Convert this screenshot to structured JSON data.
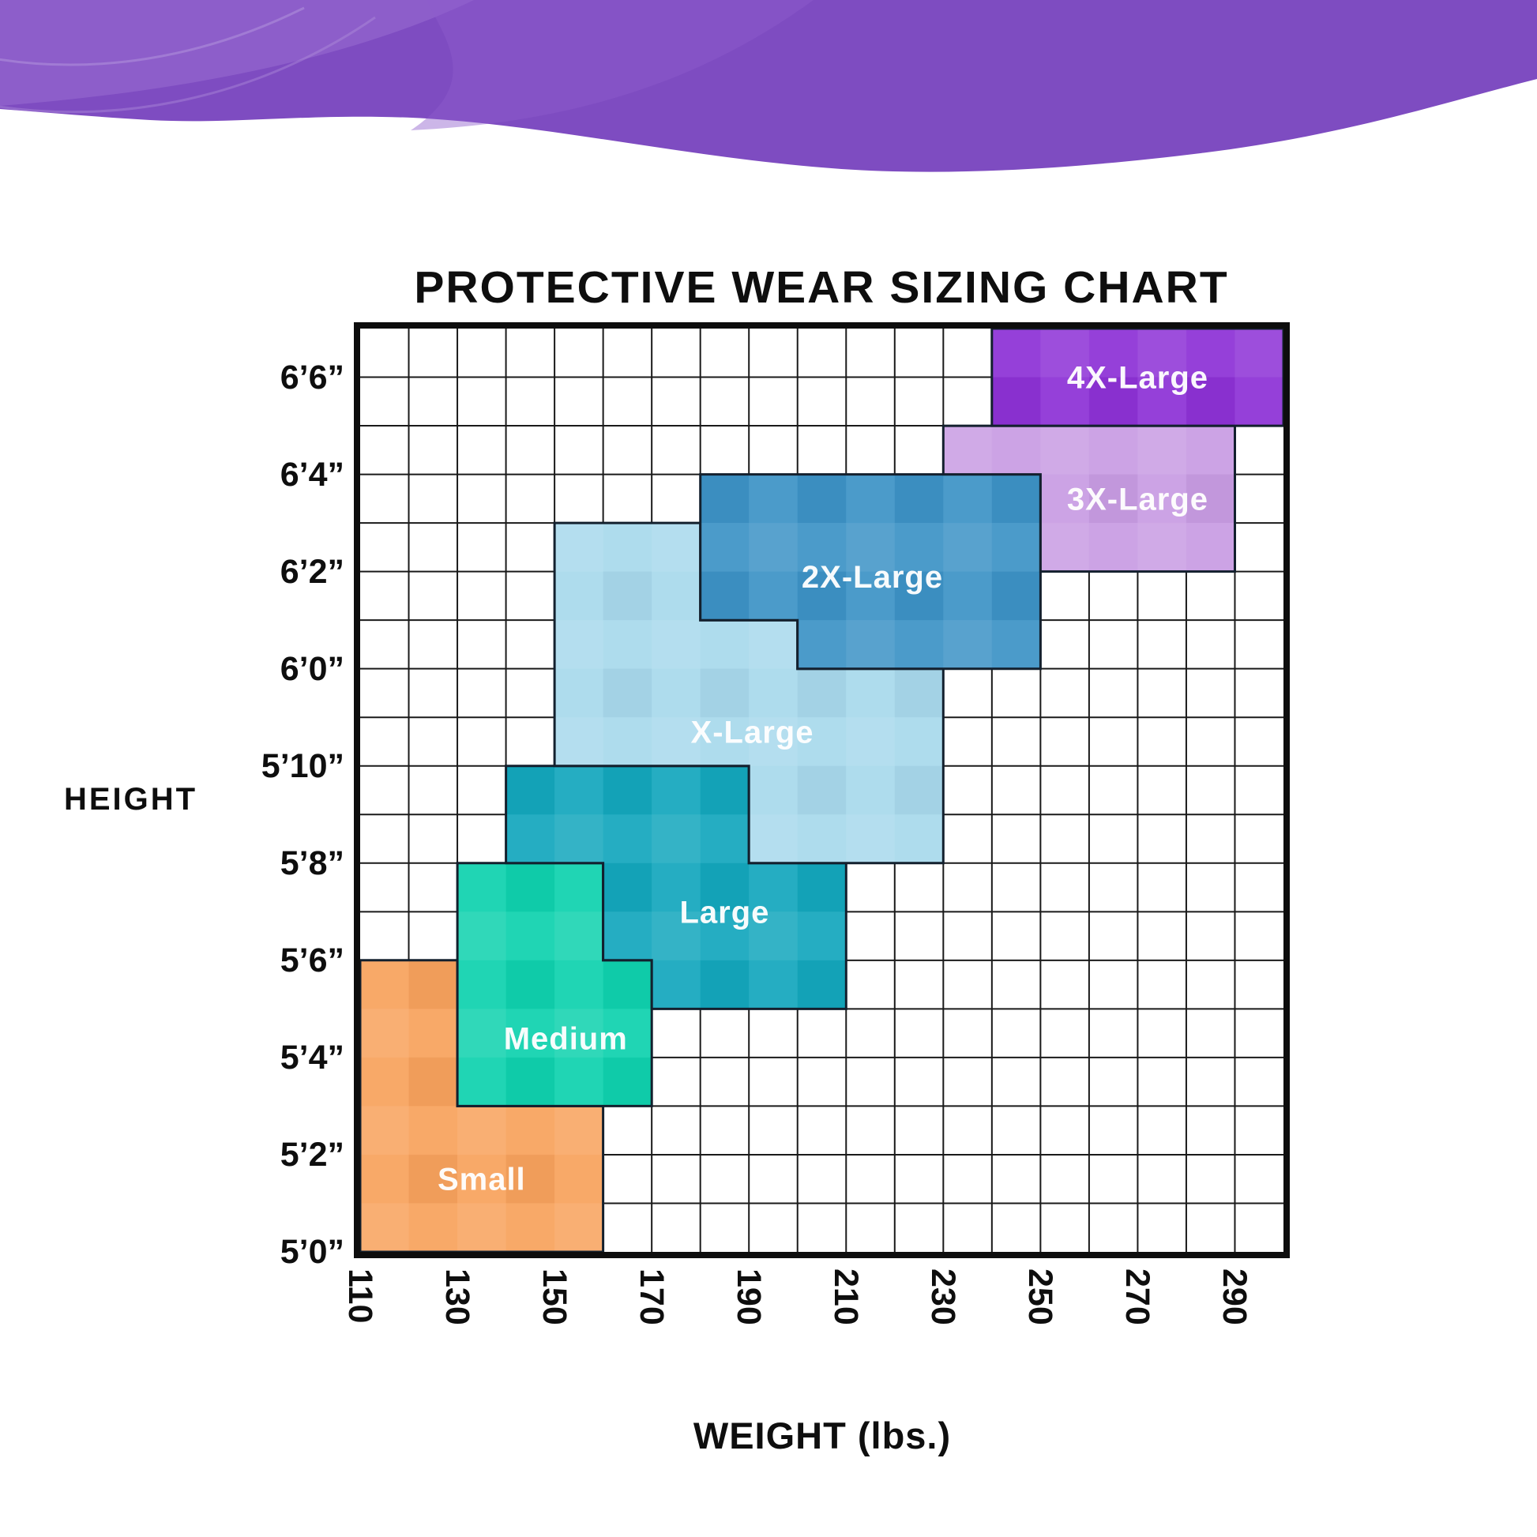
{
  "title": "PROTECTIVE WEAR SIZING CHART",
  "axes": {
    "y_title": "HEIGHT",
    "x_title": "WEIGHT (lbs.)"
  },
  "theme": {
    "background": "#ffffff",
    "plot_border": "#0d0d0d",
    "grid_line": "#1a1a1a",
    "region_outline": "#13202e",
    "region_label_color": "#ffffff",
    "text_color": "#0e0e0e",
    "wave_base": "#7e4cc1",
    "wave_light_1": "#9b6fd4",
    "wave_light_2": "#8f5ecb",
    "wave_arc_line": "#b393dd"
  },
  "chart_data": {
    "type": "heatmap",
    "subtype": "step-region size map on weight/height grid",
    "title": "PROTECTIVE WEAR SIZING CHART",
    "xlabel": "WEIGHT (lbs.)",
    "ylabel": "HEIGHT",
    "grid": true,
    "x": {
      "min": 110,
      "max": 300,
      "cell": 10,
      "tick_values": [
        110,
        130,
        150,
        170,
        190,
        210,
        230,
        250,
        270,
        290
      ],
      "tick_labels": [
        "110",
        "130",
        "150",
        "170",
        "190",
        "210",
        "230",
        "250",
        "270",
        "290"
      ]
    },
    "y": {
      "min_in": 60,
      "max_in": 79,
      "cell_in": 1,
      "tick_values_in": [
        78,
        76,
        74,
        72,
        70,
        68,
        66,
        64,
        62,
        60
      ],
      "tick_labels": [
        "6’6”",
        "6’4”",
        "6’2”",
        "6’0”",
        "5’10”",
        "5’8”",
        "5’6”",
        "5’4”",
        "5’2”",
        "5’0”"
      ]
    },
    "regions": [
      {
        "name": "small",
        "label": "Small",
        "color": "#F8A25D",
        "label_at": [
          135,
          61.5
        ],
        "polygon_weight_heightin": [
          [
            110,
            66
          ],
          [
            130,
            66
          ],
          [
            130,
            63
          ],
          [
            160,
            63
          ],
          [
            160,
            60
          ],
          [
            110,
            60
          ]
        ]
      },
      {
        "name": "medium",
        "label": "Medium",
        "color": "#0FD2AE",
        "label_at": [
          152.3,
          64.4
        ],
        "polygon_weight_heightin": [
          [
            130,
            68
          ],
          [
            160,
            68
          ],
          [
            160,
            66
          ],
          [
            170,
            66
          ],
          [
            170,
            63
          ],
          [
            130,
            63
          ]
        ]
      },
      {
        "name": "large",
        "label": "Large",
        "color": "#14A7BD",
        "label_at": [
          185,
          67
        ],
        "polygon_weight_heightin": [
          [
            140,
            70
          ],
          [
            190,
            70
          ],
          [
            190,
            68
          ],
          [
            210,
            68
          ],
          [
            210,
            65
          ],
          [
            170,
            65
          ],
          [
            170,
            66
          ],
          [
            160,
            66
          ],
          [
            160,
            68
          ],
          [
            140,
            68
          ]
        ]
      },
      {
        "name": "x-large",
        "label": "X-Large",
        "color": "#A8D9EC",
        "label_at": [
          190.7,
          70.7
        ],
        "polygon_weight_heightin": [
          [
            150,
            75
          ],
          [
            180,
            75
          ],
          [
            180,
            73
          ],
          [
            200,
            73
          ],
          [
            200,
            72
          ],
          [
            230,
            72
          ],
          [
            230,
            68
          ],
          [
            190,
            68
          ],
          [
            190,
            70
          ],
          [
            150,
            70
          ]
        ]
      },
      {
        "name": "2x-large",
        "label": "2X-Large",
        "color": "#3D93C6",
        "label_at": [
          215.4,
          73.9
        ],
        "polygon_weight_heightin": [
          [
            180,
            76
          ],
          [
            250,
            76
          ],
          [
            250,
            72
          ],
          [
            200,
            72
          ],
          [
            200,
            73
          ],
          [
            180,
            73
          ]
        ]
      },
      {
        "name": "3x-large",
        "label": "3X-Large",
        "color": "#C89CE3",
        "label_at": [
          270,
          75.5
        ],
        "polygon_weight_heightin": [
          [
            230,
            77
          ],
          [
            290,
            77
          ],
          [
            290,
            74
          ],
          [
            250,
            74
          ],
          [
            250,
            76
          ],
          [
            230,
            76
          ]
        ]
      },
      {
        "name": "4x-large",
        "label": "4X-Large",
        "color": "#8D32D6",
        "label_at": [
          270,
          78
        ],
        "polygon_weight_heightin": [
          [
            240,
            79
          ],
          [
            300,
            79
          ],
          [
            300,
            77
          ],
          [
            240,
            77
          ]
        ]
      }
    ]
  }
}
